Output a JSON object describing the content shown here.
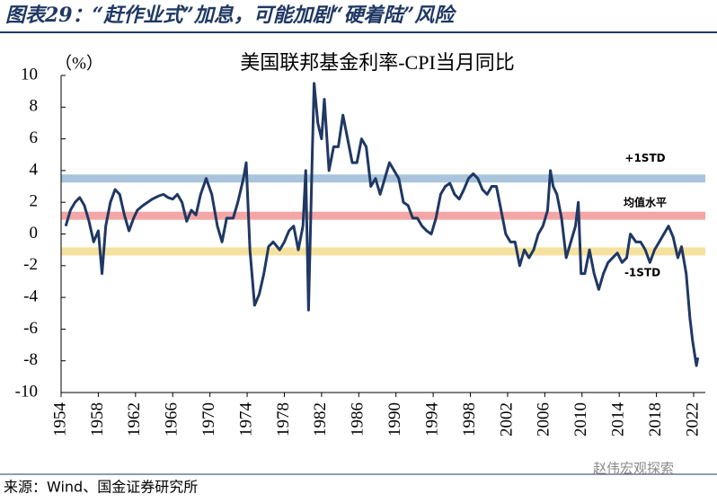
{
  "header": {
    "title": "图表29：“赶作业式”加息，可能加剧“硬着陆”风险"
  },
  "chart_data": {
    "type": "line",
    "title": "美国联邦基金利率-CPI当月同比",
    "y_unit": "（%）",
    "xlim": [
      1954,
      2022
    ],
    "xticks": [
      1954,
      1958,
      1962,
      1966,
      1970,
      1974,
      1978,
      1982,
      1986,
      1990,
      1994,
      1998,
      2002,
      2006,
      2010,
      2014,
      2018,
      2022
    ],
    "ylim": [
      -10,
      10
    ],
    "yticks": [
      -10,
      -8,
      -6,
      -4,
      -2,
      0,
      2,
      4,
      6,
      8,
      10
    ],
    "bands": [
      {
        "name": "+1STD",
        "value": 3.5,
        "color": "#a9c4dc"
      },
      {
        "name": "均值水平",
        "value": 1.15,
        "color": "#f4a6a6"
      },
      {
        "name": "-1STD",
        "value": -1.1,
        "color": "#f6e2a0"
      }
    ],
    "series": [
      {
        "color": "#1f3864",
        "x": [
          1954.5,
          1955.0,
          1955.5,
          1956.0,
          1956.5,
          1957.0,
          1957.5,
          1958.0,
          1958.4,
          1958.8,
          1959.3,
          1959.8,
          1960.3,
          1960.8,
          1961.3,
          1961.8,
          1962.2,
          1962.8,
          1963.3,
          1963.8,
          1964.5,
          1965.0,
          1965.5,
          1966.0,
          1966.5,
          1967.0,
          1967.5,
          1968.0,
          1968.5,
          1969.0,
          1969.6,
          1970.2,
          1970.8,
          1971.3,
          1971.8,
          1972.5,
          1973.0,
          1973.6,
          1973.9,
          1974.3,
          1974.8,
          1975.3,
          1975.8,
          1976.3,
          1976.8,
          1977.5,
          1978.0,
          1978.5,
          1979.0,
          1979.5,
          1980.0,
          1980.3,
          1980.6,
          1981.0,
          1981.2,
          1981.6,
          1982.0,
          1982.3,
          1982.8,
          1983.3,
          1983.8,
          1984.3,
          1984.8,
          1985.3,
          1985.8,
          1986.3,
          1986.8,
          1987.3,
          1987.8,
          1988.3,
          1988.8,
          1989.3,
          1989.8,
          1990.3,
          1990.8,
          1991.3,
          1991.8,
          1992.3,
          1992.8,
          1993.3,
          1993.8,
          1994.3,
          1994.8,
          1995.3,
          1995.8,
          1996.3,
          1996.8,
          1997.3,
          1997.8,
          1998.3,
          1998.8,
          1999.3,
          1999.8,
          2000.3,
          2000.8,
          2001.3,
          2001.8,
          2002.3,
          2002.8,
          2003.3,
          2003.8,
          2004.3,
          2004.8,
          2005.3,
          2005.8,
          2006.3,
          2006.6,
          2006.9,
          2007.3,
          2007.8,
          2008.3,
          2008.8,
          2009.3,
          2009.6,
          2009.9,
          2010.3,
          2010.8,
          2011.3,
          2011.8,
          2012.3,
          2012.8,
          2013.3,
          2013.8,
          2014.3,
          2014.8,
          2015.2,
          2015.8,
          2016.3,
          2016.8,
          2017.3,
          2017.8,
          2018.3,
          2018.8,
          2019.3,
          2019.8,
          2020.3,
          2020.7,
          2021.2,
          2021.6,
          2021.9,
          2022.3,
          2022.45
        ],
        "values": [
          0.5,
          1.5,
          2.0,
          2.3,
          1.8,
          0.8,
          -0.5,
          0.2,
          -2.5,
          0.5,
          2.0,
          2.8,
          2.5,
          1.2,
          0.2,
          1.0,
          1.5,
          1.8,
          2.0,
          2.2,
          2.4,
          2.5,
          2.3,
          2.2,
          2.5,
          2.0,
          0.8,
          1.5,
          1.2,
          2.5,
          3.5,
          2.5,
          0.5,
          -0.5,
          1.0,
          1.0,
          2.0,
          3.5,
          4.5,
          -1.0,
          -4.5,
          -3.8,
          -2.5,
          -0.8,
          -0.5,
          -1.0,
          -0.5,
          0.2,
          0.5,
          -1.0,
          0.5,
          4.0,
          -4.8,
          5.0,
          9.5,
          7.0,
          6.0,
          8.5,
          4.0,
          5.5,
          5.5,
          7.5,
          6.0,
          4.5,
          4.5,
          6.0,
          5.5,
          3.0,
          3.5,
          2.5,
          3.5,
          4.5,
          4.0,
          3.5,
          2.0,
          1.8,
          1.0,
          1.0,
          0.5,
          0.2,
          0.0,
          1.0,
          2.5,
          3.0,
          3.2,
          2.5,
          2.2,
          2.8,
          3.5,
          3.8,
          3.5,
          2.8,
          2.5,
          3.0,
          3.0,
          1.5,
          0.0,
          -0.5,
          -0.5,
          -2.0,
          -1.0,
          -1.5,
          -1.0,
          0.0,
          0.5,
          1.5,
          4.0,
          3.0,
          2.5,
          1.0,
          -1.5,
          -0.5,
          0.5,
          2.0,
          -2.5,
          -2.5,
          -1.0,
          -2.5,
          -3.5,
          -2.5,
          -1.8,
          -1.5,
          -1.2,
          -1.8,
          -1.5,
          0.0,
          -0.5,
          -0.5,
          -1.0,
          -1.8,
          -1.0,
          -0.5,
          0.0,
          0.5,
          -0.2,
          -1.5,
          -0.8,
          -2.5,
          -5.3,
          -6.8,
          -8.3,
          -7.8
        ]
      }
    ]
  },
  "footer": {
    "source": "来源：Wind、国金证券研究所",
    "watermark": "赵伟宏观探索"
  }
}
